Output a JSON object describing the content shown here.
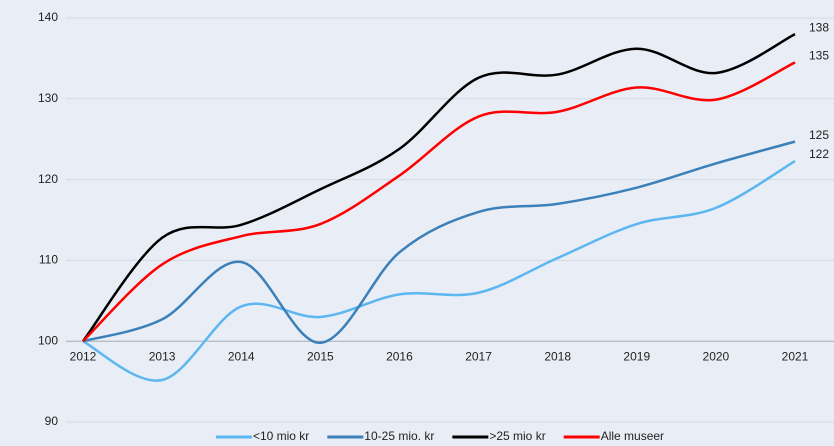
{
  "chart_data": {
    "type": "line",
    "categories": [
      "2012",
      "2013",
      "2014",
      "2015",
      "2016",
      "2017",
      "2018",
      "2019",
      "2020",
      "2021"
    ],
    "series": [
      {
        "name": "<10 mio kr",
        "color": "#5cb6f0",
        "values": [
          100,
          95.2,
          104.3,
          103,
          105.8,
          106,
          110.3,
          114.5,
          116.5,
          122.3
        ],
        "value_labels": [
          null,
          null,
          null,
          null,
          null,
          null,
          null,
          null,
          null,
          "122"
        ]
      },
      {
        "name": "10-25 mio. kr",
        "color": "#3b80b9",
        "values": [
          100,
          102.7,
          109.8,
          99.8,
          111,
          116,
          117,
          119,
          122,
          124.7
        ],
        "value_labels": [
          null,
          null,
          null,
          null,
          null,
          null,
          null,
          null,
          null,
          "125"
        ]
      },
      {
        "name": ">25 mio kr",
        "color": "#000000",
        "values": [
          100,
          112.8,
          114.4,
          118.8,
          123.8,
          132.6,
          133,
          136.2,
          133.2,
          138
        ],
        "value_labels": [
          null,
          null,
          null,
          null,
          null,
          null,
          null,
          null,
          null,
          "138"
        ]
      },
      {
        "name": "Alle museer",
        "color": "#ff0000",
        "values": [
          100,
          109.5,
          113,
          114.5,
          120.5,
          127.8,
          128.4,
          131.4,
          129.9,
          134.5
        ],
        "value_labels": [
          null,
          null,
          null,
          null,
          null,
          null,
          null,
          null,
          null,
          "135"
        ]
      }
    ],
    "ylim": [
      90,
      140
    ],
    "yticks": [
      90,
      100,
      110,
      120,
      130,
      140
    ],
    "grid": true,
    "x_axis_at": 100,
    "smooth": true,
    "legend": "bottom"
  }
}
